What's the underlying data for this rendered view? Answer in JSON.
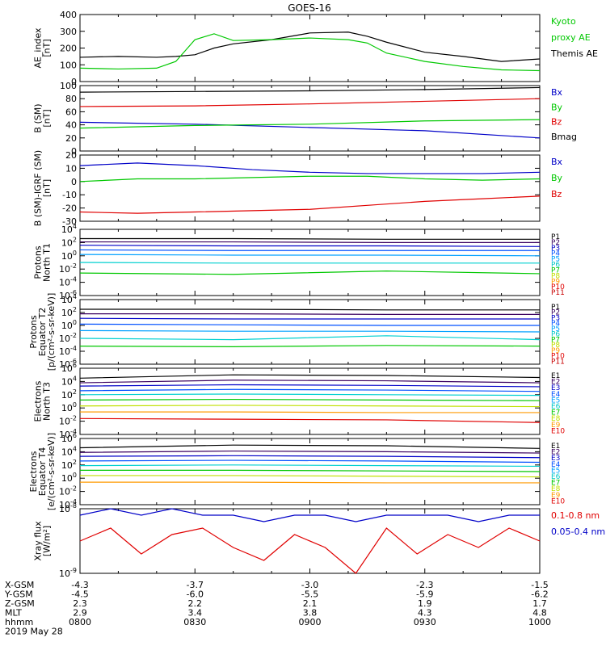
{
  "title": "GOES-16",
  "colors": {
    "black": "#000000",
    "red": "#e00000",
    "green": "#00c800",
    "blue": "#0000c8",
    "cyan": "#00d0d0",
    "orange": "#ff9a00",
    "yellow": "#e8d800"
  },
  "x_ticks": [
    "0800",
    "0830",
    "0900",
    "0930",
    "1000"
  ],
  "ephemeris": {
    "labels": [
      "X-GSM",
      "Y-GSM",
      "Z-GSM",
      "MLT",
      "hhmm"
    ],
    "rows": [
      [
        "-4.3",
        "-3.7",
        "-3.0",
        "-2.3",
        "-1.5"
      ],
      [
        "-4.5",
        "-6.0",
        "-5.5",
        "-5.9",
        "-6.2"
      ],
      [
        "2.3",
        "2.2",
        "2.1",
        "1.9",
        "1.7"
      ],
      [
        "2.9",
        "3.4",
        "3.8",
        "4.3",
        "4.8"
      ],
      [
        "0800",
        "0830",
        "0900",
        "0930",
        "1000"
      ]
    ],
    "date": "2019 May 28"
  },
  "chart_data": [
    {
      "type": "line",
      "panel": "ae",
      "ylabel": [
        "AE_index",
        "[nT]"
      ],
      "ylim": [
        0,
        400
      ],
      "yticks": [
        "0",
        "100",
        "200",
        "300",
        "400"
      ],
      "legend": [
        {
          "text": "Kyoto",
          "color": "#00c800"
        },
        {
          "text": "proxy AE",
          "color": "#00c800"
        },
        {
          "text": "Themis AE",
          "color": "#000000"
        }
      ],
      "x_minutes": [
        0,
        10,
        20,
        25,
        30,
        35,
        40,
        50,
        60,
        70,
        75,
        80,
        90,
        100,
        110,
        120
      ],
      "series": [
        {
          "name": "Themis AE",
          "color": "#000000",
          "values": [
            145,
            150,
            145,
            150,
            160,
            200,
            225,
            250,
            290,
            295,
            270,
            235,
            175,
            150,
            120,
            135
          ]
        },
        {
          "name": "Kyoto proxy AE",
          "color": "#00c800",
          "values": [
            80,
            75,
            80,
            120,
            250,
            285,
            245,
            250,
            260,
            250,
            230,
            170,
            120,
            90,
            70,
            65
          ]
        }
      ]
    },
    {
      "type": "line",
      "panel": "bsm",
      "ylabel": [
        "B (SM)",
        "[nT]"
      ],
      "ylim": [
        0,
        100
      ],
      "yticks": [
        "0",
        "20",
        "40",
        "60",
        "80",
        "100"
      ],
      "legend": [
        {
          "text": "Bx",
          "color": "#0000c8"
        },
        {
          "text": "By",
          "color": "#00c800"
        },
        {
          "text": "Bz",
          "color": "#e00000"
        },
        {
          "text": "Bmag",
          "color": "#000000"
        }
      ],
      "x_minutes": [
        0,
        30,
        60,
        90,
        120
      ],
      "series": [
        {
          "name": "Bmag",
          "color": "#000000",
          "values": [
            90,
            91,
            92,
            94,
            97
          ]
        },
        {
          "name": "Bz",
          "color": "#e00000",
          "values": [
            68,
            69,
            72,
            76,
            80
          ]
        },
        {
          "name": "Bx",
          "color": "#0000c8",
          "values": [
            44,
            41,
            36,
            31,
            20
          ]
        },
        {
          "name": "By",
          "color": "#00c800",
          "values": [
            35,
            39,
            41,
            46,
            48
          ]
        }
      ]
    },
    {
      "type": "line",
      "panel": "bdiff",
      "ylabel": [
        "B (SM)-IGRF (SM)",
        "[nT]"
      ],
      "ylim": [
        -30,
        20
      ],
      "yticks": [
        "-30",
        "-20",
        "-10",
        "0",
        "10",
        "20"
      ],
      "legend": [
        {
          "text": "Bx",
          "color": "#0000c8"
        },
        {
          "text": "By",
          "color": "#00c800"
        },
        {
          "text": "Bz",
          "color": "#e00000"
        }
      ],
      "x_minutes": [
        0,
        15,
        30,
        45,
        60,
        75,
        90,
        105,
        120
      ],
      "series": [
        {
          "name": "Bx",
          "color": "#0000c8",
          "values": [
            12,
            14,
            12,
            9,
            7,
            6,
            6,
            6,
            7
          ]
        },
        {
          "name": "By",
          "color": "#00c800",
          "values": [
            0,
            2,
            2,
            3,
            4,
            4,
            2,
            1,
            2
          ]
        },
        {
          "name": "Bz",
          "color": "#e00000",
          "values": [
            -23,
            -24,
            -23,
            -22,
            -21,
            -18,
            -15,
            -13,
            -11
          ]
        }
      ]
    },
    {
      "type": "line",
      "panel": "p1",
      "log": true,
      "ylabel": [
        "Protons",
        "North T1"
      ],
      "yexp": [
        -6,
        4
      ],
      "yticks": [
        "10^-6",
        "10^-4",
        "10^-2",
        "10^0",
        "10^2",
        "10^4"
      ],
      "legend": [
        {
          "text": "P1",
          "color": "#000000"
        },
        {
          "text": "P2",
          "color": "#3a0060"
        },
        {
          "text": "P3",
          "color": "#0000c8"
        },
        {
          "text": "P4",
          "color": "#0050ff"
        },
        {
          "text": "P5",
          "color": "#00a0ff"
        },
        {
          "text": "P6",
          "color": "#00c8c8"
        },
        {
          "text": "P7",
          "color": "#00c800"
        },
        {
          "text": "P8",
          "color": "#c0e000"
        },
        {
          "text": "P9",
          "color": "#ff9a00"
        },
        {
          "text": "P10",
          "color": "#e00000"
        },
        {
          "text": "P11",
          "color": "#c80000"
        }
      ],
      "series": [
        {
          "name": "P1",
          "color": "#000000",
          "exp": [
            2.6,
            2.6,
            2.5,
            2.5
          ]
        },
        {
          "name": "P2",
          "color": "#3a0060",
          "exp": [
            2.1,
            2.1,
            2.0,
            2.0
          ]
        },
        {
          "name": "P3",
          "color": "#0000c8",
          "exp": [
            1.6,
            1.5,
            1.5,
            1.4
          ]
        },
        {
          "name": "P4",
          "color": "#0050ff",
          "exp": [
            0.9,
            0.8,
            0.8,
            0.8
          ]
        },
        {
          "name": "P5",
          "color": "#00a0ff",
          "exp": [
            0.2,
            0.1,
            0.1,
            0.0
          ]
        },
        {
          "name": "P6",
          "color": "#00d0d0",
          "exp": [
            -1.0,
            -1.1,
            -1.1,
            -1.1
          ]
        },
        {
          "name": "P7",
          "color": "#00c800",
          "exp": [
            -2.6,
            -2.8,
            -2.3,
            -2.7
          ]
        }
      ]
    },
    {
      "type": "line",
      "panel": "p2",
      "log": true,
      "ylabel": [
        "Protons",
        "Equator T2",
        "[p/(cm²-s-sr-keV)]"
      ],
      "yexp": [
        -6,
        4
      ],
      "yticks": [
        "10^-6",
        "10^-4",
        "10^-2",
        "10^0",
        "10^2",
        "10^4"
      ],
      "legend": [
        {
          "text": "P1",
          "color": "#000000"
        },
        {
          "text": "P2",
          "color": "#3a0060"
        },
        {
          "text": "P3",
          "color": "#0000c8"
        },
        {
          "text": "P4",
          "color": "#0050ff"
        },
        {
          "text": "P5",
          "color": "#00a0ff"
        },
        {
          "text": "P6",
          "color": "#00c8c8"
        },
        {
          "text": "P7",
          "color": "#00c800"
        },
        {
          "text": "P8",
          "color": "#c0e000"
        },
        {
          "text": "P9",
          "color": "#ff9a00"
        },
        {
          "text": "P10",
          "color": "#e00000"
        },
        {
          "text": "P11",
          "color": "#c80000"
        }
      ],
      "series": [
        {
          "name": "P1",
          "color": "#000000",
          "exp": [
            2.5,
            2.5,
            2.4,
            2.4
          ]
        },
        {
          "name": "P2",
          "color": "#3a0060",
          "exp": [
            1.8,
            1.8,
            1.7,
            1.7
          ]
        },
        {
          "name": "P3",
          "color": "#0000c8",
          "exp": [
            1.1,
            1.0,
            1.0,
            1.0
          ]
        },
        {
          "name": "P4",
          "color": "#0050ff",
          "exp": [
            0.2,
            0.1,
            0.0,
            0.0
          ]
        },
        {
          "name": "P5",
          "color": "#00a0ff",
          "exp": [
            -0.8,
            -0.9,
            -0.9,
            -1.0
          ]
        },
        {
          "name": "P6",
          "color": "#00d0d0",
          "exp": [
            -2.0,
            -2.2,
            -1.6,
            -2.2
          ]
        },
        {
          "name": "P7",
          "color": "#00c800",
          "exp": [
            -3.2,
            -3.3,
            -3.1,
            -3.2
          ]
        }
      ]
    },
    {
      "type": "line",
      "panel": "e1",
      "log": true,
      "ylabel": [
        "Electrons",
        "North T3"
      ],
      "yexp": [
        -4,
        6
      ],
      "yticks": [
        "10^-4",
        "10^-2",
        "10^0",
        "10^2",
        "10^4",
        "10^6"
      ],
      "legend": [
        {
          "text": "E1",
          "color": "#000000"
        },
        {
          "text": "E2",
          "color": "#3a0060"
        },
        {
          "text": "E3",
          "color": "#0000c8"
        },
        {
          "text": "E4",
          "color": "#0050ff"
        },
        {
          "text": "E5",
          "color": "#00a0ff"
        },
        {
          "text": "E6",
          "color": "#00c8c8"
        },
        {
          "text": "E7",
          "color": "#00c800"
        },
        {
          "text": "E8",
          "color": "#c0e000"
        },
        {
          "text": "E9",
          "color": "#ff9a00"
        },
        {
          "text": "E10",
          "color": "#e00000"
        }
      ],
      "series": [
        {
          "name": "E1",
          "color": "#000000",
          "exp": [
            4.5,
            5.0,
            4.9,
            4.6
          ]
        },
        {
          "name": "E2",
          "color": "#3a0060",
          "exp": [
            3.8,
            4.2,
            4.1,
            3.8
          ]
        },
        {
          "name": "E3",
          "color": "#0000c8",
          "exp": [
            3.3,
            3.5,
            3.4,
            3.2
          ]
        },
        {
          "name": "E4",
          "color": "#0050ff",
          "exp": [
            2.6,
            2.8,
            2.7,
            2.5
          ]
        },
        {
          "name": "E5",
          "color": "#00d0d0",
          "exp": [
            2.0,
            2.1,
            2.0,
            1.9
          ]
        },
        {
          "name": "E6",
          "color": "#00c800",
          "exp": [
            1.2,
            1.3,
            1.2,
            1.1
          ]
        },
        {
          "name": "E7",
          "color": "#c0e000",
          "exp": [
            0.3,
            0.4,
            0.3,
            0.2
          ]
        },
        {
          "name": "E8",
          "color": "#ff9a00",
          "exp": [
            -0.6,
            -0.6,
            -0.7,
            -0.7
          ]
        },
        {
          "name": "E9",
          "color": "#e00000",
          "exp": [
            -1.6,
            -1.7,
            -1.8,
            -2.2
          ]
        }
      ]
    },
    {
      "type": "line",
      "panel": "e2",
      "log": true,
      "ylabel": [
        "Electrons",
        "Equator T4",
        "[e/(cm²-s-sr-keV)]"
      ],
      "yexp": [
        -4,
        6
      ],
      "yticks": [
        "10^-4",
        "10^-2",
        "10^0",
        "10^2",
        "10^4",
        "10^6"
      ],
      "legend": [
        {
          "text": "E1",
          "color": "#000000"
        },
        {
          "text": "E2",
          "color": "#3a0060"
        },
        {
          "text": "E3",
          "color": "#0000c8"
        },
        {
          "text": "E4",
          "color": "#0050ff"
        },
        {
          "text": "E5",
          "color": "#00a0ff"
        },
        {
          "text": "E6",
          "color": "#00c8c8"
        },
        {
          "text": "E7",
          "color": "#00c800"
        },
        {
          "text": "E8",
          "color": "#c0e000"
        },
        {
          "text": "E9",
          "color": "#ff9a00"
        },
        {
          "text": "E10",
          "color": "#e00000"
        }
      ],
      "series": [
        {
          "name": "E1",
          "color": "#000000",
          "exp": [
            4.6,
            5.0,
            4.9,
            4.5
          ]
        },
        {
          "name": "E2",
          "color": "#3a0060",
          "exp": [
            3.9,
            4.1,
            4.0,
            3.8
          ]
        },
        {
          "name": "E3",
          "color": "#0000c8",
          "exp": [
            3.3,
            3.4,
            3.3,
            3.1
          ]
        },
        {
          "name": "E4",
          "color": "#0050ff",
          "exp": [
            2.6,
            2.7,
            2.6,
            2.4
          ]
        },
        {
          "name": "E5",
          "color": "#00d0d0",
          "exp": [
            1.9,
            2.0,
            1.9,
            1.8
          ]
        },
        {
          "name": "E6",
          "color": "#00c800",
          "exp": [
            1.2,
            1.2,
            1.1,
            1.0
          ]
        },
        {
          "name": "E7",
          "color": "#c0e000",
          "exp": [
            0.4,
            0.4,
            0.3,
            0.2
          ]
        },
        {
          "name": "E8",
          "color": "#ff9a00",
          "exp": [
            -0.6,
            -0.6,
            -0.7,
            -0.7
          ]
        }
      ]
    },
    {
      "type": "line",
      "panel": "xray",
      "log": true,
      "ylabel": [
        "Xray flux",
        "[W/m²]"
      ],
      "yexp": [
        -9,
        -8
      ],
      "yticks": [
        "10^-9",
        "10^-8"
      ],
      "legend": [
        {
          "text": "0.1-0.8 nm",
          "color": "#e00000"
        },
        {
          "text": "0.05-0.4 nm",
          "color": "#0000c8"
        }
      ],
      "series": [
        {
          "name": "0.1-0.8 nm",
          "color": "#e00000",
          "exp": [
            -8.5,
            -8.3,
            -8.7,
            -8.4,
            -8.3,
            -8.6,
            -8.8,
            -8.4,
            -8.6,
            -9.0,
            -8.3,
            -8.7,
            -8.4,
            -8.6,
            -8.3,
            -8.5
          ]
        },
        {
          "name": "0.05-0.4 nm",
          "color": "#0000c8",
          "exp": [
            -8.1,
            -8.0,
            -8.1,
            -8.0,
            -8.1,
            -8.1,
            -8.2,
            -8.1,
            -8.1,
            -8.2,
            -8.1,
            -8.1,
            -8.1,
            -8.2,
            -8.1,
            -8.1
          ]
        }
      ]
    }
  ]
}
